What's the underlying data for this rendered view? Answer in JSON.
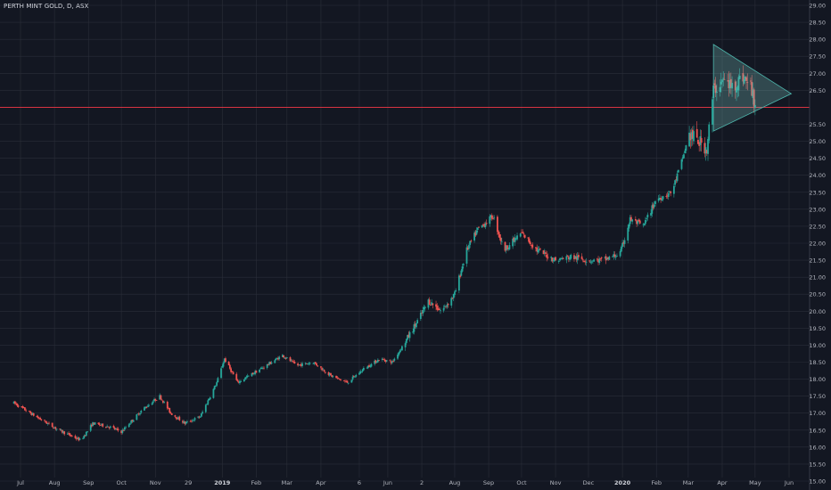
{
  "title": "PERTH MINT GOLD, D, ASX",
  "colors": {
    "background": "#131722",
    "grid": "#2a2e39",
    "up": "#26a69a",
    "down": "#ef5350",
    "text": "#b2b5be",
    "hline": "#f23645",
    "triangle_fill": "#80cbc4",
    "triangle_stroke": "#4db6ac"
  },
  "chart_data": {
    "type": "candlestick",
    "title": "PERTH MINT GOLD, D, ASX",
    "ylim": [
      15.0,
      29.0
    ],
    "y_ticks": [
      "15.00",
      "15.50",
      "16.00",
      "16.50",
      "17.00",
      "17.50",
      "18.00",
      "18.50",
      "19.00",
      "19.50",
      "20.00",
      "20.50",
      "21.00",
      "21.50",
      "22.00",
      "22.50",
      "23.00",
      "23.50",
      "24.00",
      "24.50",
      "25.00",
      "25.50",
      "26.00",
      "26.50",
      "27.00",
      "27.50",
      "28.00",
      "28.50",
      "29.00"
    ],
    "x_labels": [
      "Jul",
      "Aug",
      "Sep",
      "Oct",
      "Nov",
      "29",
      "2019",
      "Feb",
      "Mar",
      "Apr",
      "6",
      "Jun",
      "2",
      "Aug",
      "Sep",
      "Oct",
      "Nov",
      "Dec",
      "2020",
      "Feb",
      "Mar",
      "Apr",
      "May",
      "Jun"
    ],
    "grid": true,
    "horizontal_line": {
      "price": 26.0,
      "label": "26.00"
    },
    "triangle_pattern": {
      "points": [
        [
          "2020-03-24",
          27.85
        ],
        [
          "2020-06-03",
          26.4
        ],
        [
          "2020-03-24",
          25.3
        ]
      ]
    },
    "price_path": [
      [
        "2018-06-25",
        17.3
      ],
      [
        "2018-07-15",
        16.9
      ],
      [
        "2018-08-05",
        16.5
      ],
      [
        "2018-08-25",
        16.2
      ],
      [
        "2018-09-05",
        16.7
      ],
      [
        "2018-09-20",
        16.6
      ],
      [
        "2018-10-01",
        16.45
      ],
      [
        "2018-10-20",
        17.1
      ],
      [
        "2018-11-05",
        17.5
      ],
      [
        "2018-11-15",
        17.0
      ],
      [
        "2018-11-28",
        16.7
      ],
      [
        "2018-12-12",
        16.9
      ],
      [
        "2018-12-27",
        17.9
      ],
      [
        "2019-01-03",
        18.6
      ],
      [
        "2019-01-15",
        17.9
      ],
      [
        "2019-02-05",
        18.3
      ],
      [
        "2019-02-25",
        18.7
      ],
      [
        "2019-03-10",
        18.4
      ],
      [
        "2019-03-25",
        18.5
      ],
      [
        "2019-04-10",
        18.1
      ],
      [
        "2019-04-25",
        17.9
      ],
      [
        "2019-05-10",
        18.3
      ],
      [
        "2019-05-25",
        18.6
      ],
      [
        "2019-06-05",
        18.5
      ],
      [
        "2019-06-15",
        19.0
      ],
      [
        "2019-06-28",
        19.7
      ],
      [
        "2019-07-08",
        20.3
      ],
      [
        "2019-07-20",
        20.0
      ],
      [
        "2019-08-01",
        20.5
      ],
      [
        "2019-08-12",
        21.8
      ],
      [
        "2019-08-22",
        22.4
      ],
      [
        "2019-09-05",
        22.8
      ],
      [
        "2019-09-15",
        21.8
      ],
      [
        "2019-10-01",
        22.3
      ],
      [
        "2019-10-15",
        21.8
      ],
      [
        "2019-11-01",
        21.5
      ],
      [
        "2019-11-15",
        21.6
      ],
      [
        "2019-12-01",
        21.5
      ],
      [
        "2019-12-15",
        21.5
      ],
      [
        "2019-12-30",
        21.7
      ],
      [
        "2020-01-08",
        22.7
      ],
      [
        "2020-01-20",
        22.5
      ],
      [
        "2020-02-01",
        23.3
      ],
      [
        "2020-02-15",
        23.5
      ],
      [
        "2020-02-24",
        24.4
      ],
      [
        "2020-03-02",
        25.2
      ],
      [
        "2020-03-10",
        25.0
      ],
      [
        "2020-03-18",
        24.8
      ],
      [
        "2020-03-24",
        26.5
      ],
      [
        "2020-04-02",
        26.8
      ],
      [
        "2020-04-10",
        26.6
      ],
      [
        "2020-04-20",
        26.9
      ],
      [
        "2020-04-27",
        26.6
      ],
      [
        "2020-05-01",
        26.1
      ]
    ]
  }
}
